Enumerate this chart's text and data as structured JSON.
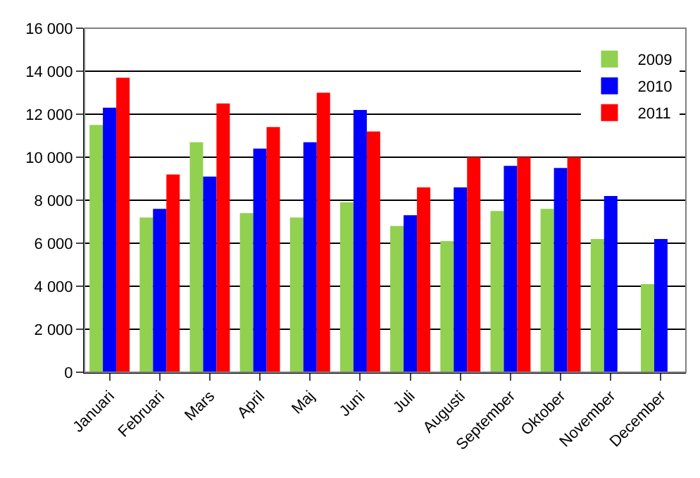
{
  "chart_data": {
    "type": "bar",
    "categories": [
      "Januari",
      "Februari",
      "Mars",
      "April",
      "Maj",
      "Juni",
      "Juli",
      "Augusti",
      "September",
      "Oktober",
      "November",
      "December"
    ],
    "series": [
      {
        "name": "2009",
        "color": "#92d050",
        "values": [
          11500,
          7200,
          10700,
          7400,
          7200,
          7900,
          6800,
          6100,
          7500,
          7600,
          6200,
          4100
        ]
      },
      {
        "name": "2010",
        "color": "#0000ff",
        "values": [
          12300,
          7600,
          9100,
          10400,
          10700,
          12200,
          7300,
          8600,
          9600,
          9500,
          8200,
          6200
        ]
      },
      {
        "name": "2011",
        "color": "#ff0000",
        "values": [
          13700,
          9200,
          12500,
          11400,
          13000,
          11200,
          8600,
          10000,
          10000,
          10000,
          null,
          null
        ]
      }
    ],
    "ylim": [
      0,
      16000
    ],
    "yticks": [
      {
        "value": 0,
        "label": "0"
      },
      {
        "value": 2000,
        "label": "2 000"
      },
      {
        "value": 4000,
        "label": "4 000"
      },
      {
        "value": 6000,
        "label": "6 000"
      },
      {
        "value": 8000,
        "label": "8 000"
      },
      {
        "value": 10000,
        "label": "10 000"
      },
      {
        "value": 12000,
        "label": "12 000"
      },
      {
        "value": 14000,
        "label": "14 000"
      },
      {
        "value": 16000,
        "label": "16 000"
      }
    ],
    "grid": "y",
    "legend": "top right"
  }
}
